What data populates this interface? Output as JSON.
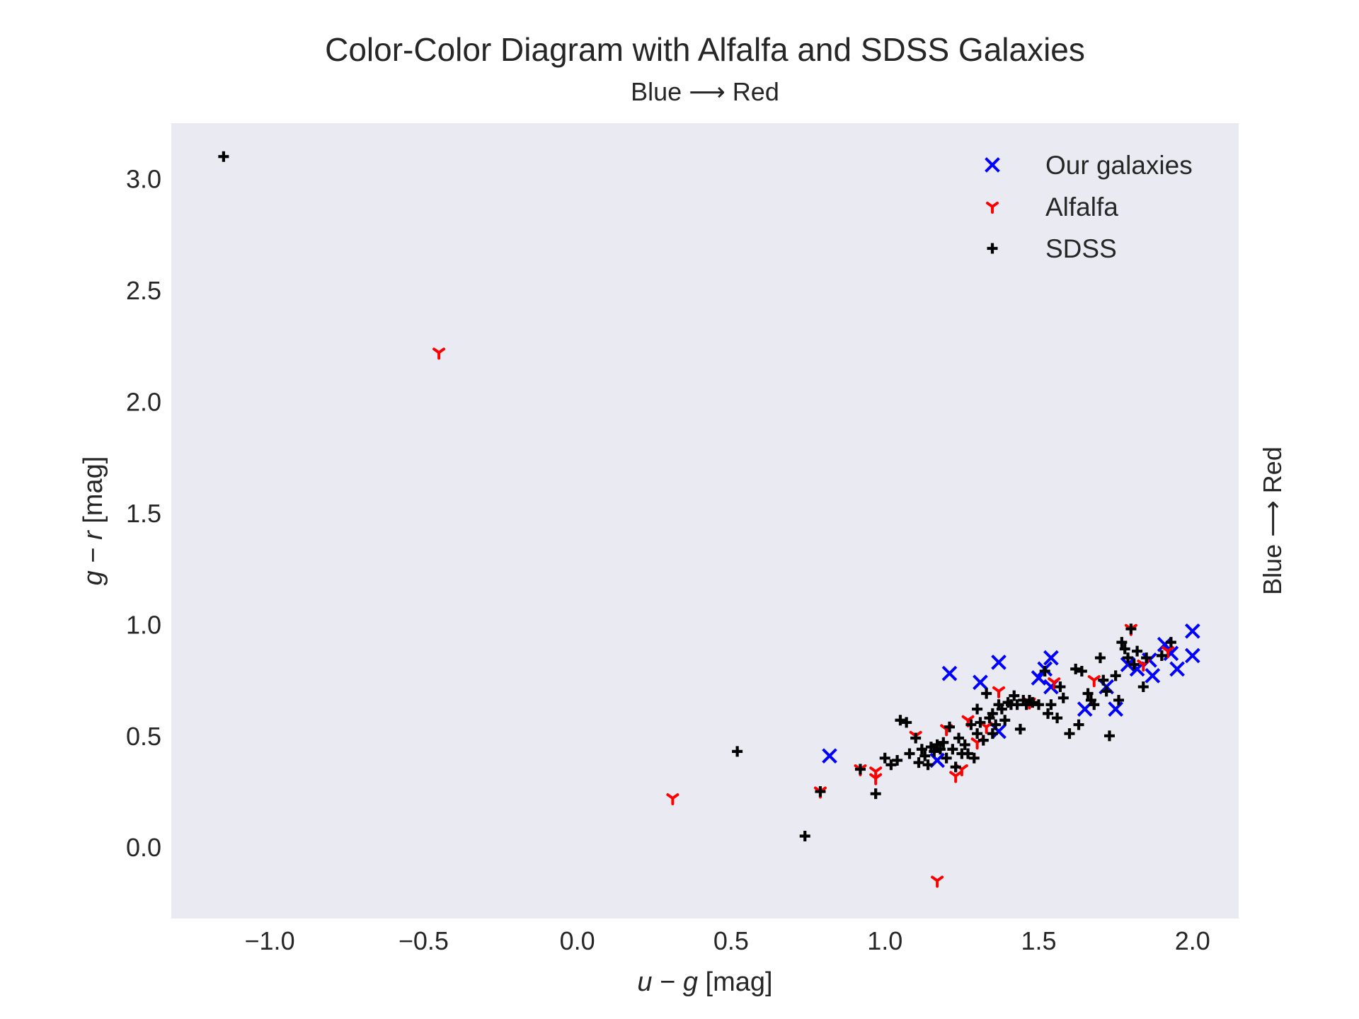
{
  "chart_data": {
    "type": "scatter",
    "title": "Color-Color Diagram with Alfalfa and SDSS Galaxies",
    "subtitle": "Blue ⟶ Red",
    "right_label": "Blue ⟶ Red",
    "xlabel": "u − g [mag]",
    "xlabel_var1": "u",
    "xlabel_op": " − ",
    "xlabel_var2": "g",
    "xlabel_unit": " [mag]",
    "ylabel": "g − r [mag]",
    "ylabel_var1": "g",
    "ylabel_op": " − ",
    "ylabel_var2": "r",
    "ylabel_unit": " [mag]",
    "xlim": [
      -1.32,
      2.15
    ],
    "ylim": [
      -0.32,
      3.25
    ],
    "xticks": [
      -1.0,
      -0.5,
      0.0,
      0.5,
      1.0,
      1.5,
      2.0
    ],
    "xtick_labels": [
      "−1.0",
      "−0.5",
      "0.0",
      "0.5",
      "1.0",
      "1.5",
      "2.0"
    ],
    "yticks": [
      0.0,
      0.5,
      1.0,
      1.5,
      2.0,
      2.5,
      3.0
    ],
    "ytick_labels": [
      "0.0",
      "0.5",
      "1.0",
      "1.5",
      "2.0",
      "2.5",
      "3.0"
    ],
    "grid": false,
    "legend_position": "top-right",
    "background": "#eaeaf2",
    "series": [
      {
        "name": "Our galaxies",
        "marker": "x",
        "color": "#0000ff",
        "points": [
          [
            0.82,
            0.41
          ],
          [
            1.17,
            0.39
          ],
          [
            1.21,
            0.78
          ],
          [
            1.31,
            0.74
          ],
          [
            1.37,
            0.83
          ],
          [
            1.37,
            0.52
          ],
          [
            1.5,
            0.76
          ],
          [
            1.52,
            0.8
          ],
          [
            1.54,
            0.85
          ],
          [
            1.54,
            0.72
          ],
          [
            1.65,
            0.62
          ],
          [
            1.72,
            0.72
          ],
          [
            1.75,
            0.62
          ],
          [
            1.79,
            0.82
          ],
          [
            1.82,
            0.8
          ],
          [
            1.86,
            0.84
          ],
          [
            1.87,
            0.77
          ],
          [
            1.91,
            0.91
          ],
          [
            1.93,
            0.87
          ],
          [
            1.95,
            0.8
          ],
          [
            2.0,
            0.97
          ],
          [
            2.0,
            0.86
          ]
        ]
      },
      {
        "name": "Alfalfa",
        "marker": "tri_down",
        "color": "#ff0000",
        "points": [
          [
            -0.45,
            2.22
          ],
          [
            0.31,
            0.22
          ],
          [
            0.79,
            0.25
          ],
          [
            0.92,
            0.35
          ],
          [
            0.97,
            0.31
          ],
          [
            0.97,
            0.34
          ],
          [
            1.1,
            0.5
          ],
          [
            1.17,
            -0.15
          ],
          [
            1.2,
            0.53
          ],
          [
            1.23,
            0.32
          ],
          [
            1.25,
            0.35
          ],
          [
            1.27,
            0.57
          ],
          [
            1.3,
            0.47
          ],
          [
            1.33,
            0.54
          ],
          [
            1.37,
            0.7
          ],
          [
            1.47,
            0.65
          ],
          [
            1.55,
            0.74
          ],
          [
            1.68,
            0.75
          ],
          [
            1.8,
            0.98
          ],
          [
            1.84,
            0.82
          ],
          [
            1.92,
            0.88
          ]
        ]
      },
      {
        "name": "SDSS",
        "marker": "P",
        "color": "#000000",
        "points": [
          [
            -1.15,
            3.1
          ],
          [
            0.52,
            0.43
          ],
          [
            0.74,
            0.05
          ],
          [
            0.79,
            0.25
          ],
          [
            0.92,
            0.35
          ],
          [
            0.97,
            0.24
          ],
          [
            1.0,
            0.4
          ],
          [
            1.02,
            0.37
          ],
          [
            1.04,
            0.39
          ],
          [
            1.05,
            0.57
          ],
          [
            1.07,
            0.56
          ],
          [
            1.08,
            0.42
          ],
          [
            1.1,
            0.49
          ],
          [
            1.11,
            0.38
          ],
          [
            1.12,
            0.44
          ],
          [
            1.13,
            0.41
          ],
          [
            1.14,
            0.37
          ],
          [
            1.15,
            0.45
          ],
          [
            1.16,
            0.43
          ],
          [
            1.17,
            0.46
          ],
          [
            1.18,
            0.44
          ],
          [
            1.19,
            0.47
          ],
          [
            1.2,
            0.4
          ],
          [
            1.21,
            0.54
          ],
          [
            1.22,
            0.44
          ],
          [
            1.23,
            0.36
          ],
          [
            1.24,
            0.49
          ],
          [
            1.25,
            0.42
          ],
          [
            1.26,
            0.46
          ],
          [
            1.27,
            0.42
          ],
          [
            1.28,
            0.55
          ],
          [
            1.29,
            0.4
          ],
          [
            1.3,
            0.62
          ],
          [
            1.3,
            0.51
          ],
          [
            1.31,
            0.56
          ],
          [
            1.32,
            0.48
          ],
          [
            1.33,
            0.69
          ],
          [
            1.34,
            0.58
          ],
          [
            1.35,
            0.6
          ],
          [
            1.35,
            0.51
          ],
          [
            1.36,
            0.55
          ],
          [
            1.37,
            0.64
          ],
          [
            1.38,
            0.62
          ],
          [
            1.39,
            0.57
          ],
          [
            1.4,
            0.65
          ],
          [
            1.41,
            0.64
          ],
          [
            1.42,
            0.68
          ],
          [
            1.43,
            0.64
          ],
          [
            1.44,
            0.53
          ],
          [
            1.45,
            0.66
          ],
          [
            1.46,
            0.64
          ],
          [
            1.47,
            0.66
          ],
          [
            1.48,
            0.65
          ],
          [
            1.5,
            0.64
          ],
          [
            1.52,
            0.79
          ],
          [
            1.53,
            0.6
          ],
          [
            1.54,
            0.64
          ],
          [
            1.56,
            0.58
          ],
          [
            1.57,
            0.72
          ],
          [
            1.58,
            0.67
          ],
          [
            1.6,
            0.51
          ],
          [
            1.62,
            0.8
          ],
          [
            1.63,
            0.55
          ],
          [
            1.64,
            0.79
          ],
          [
            1.66,
            0.69
          ],
          [
            1.67,
            0.66
          ],
          [
            1.68,
            0.64
          ],
          [
            1.7,
            0.85
          ],
          [
            1.71,
            0.75
          ],
          [
            1.72,
            0.7
          ],
          [
            1.73,
            0.5
          ],
          [
            1.75,
            0.77
          ],
          [
            1.76,
            0.66
          ],
          [
            1.77,
            0.92
          ],
          [
            1.78,
            0.89
          ],
          [
            1.79,
            0.85
          ],
          [
            1.8,
            0.98
          ],
          [
            1.81,
            0.82
          ],
          [
            1.82,
            0.88
          ],
          [
            1.84,
            0.72
          ],
          [
            1.85,
            0.85
          ],
          [
            1.9,
            0.86
          ],
          [
            1.93,
            0.92
          ]
        ]
      }
    ]
  }
}
